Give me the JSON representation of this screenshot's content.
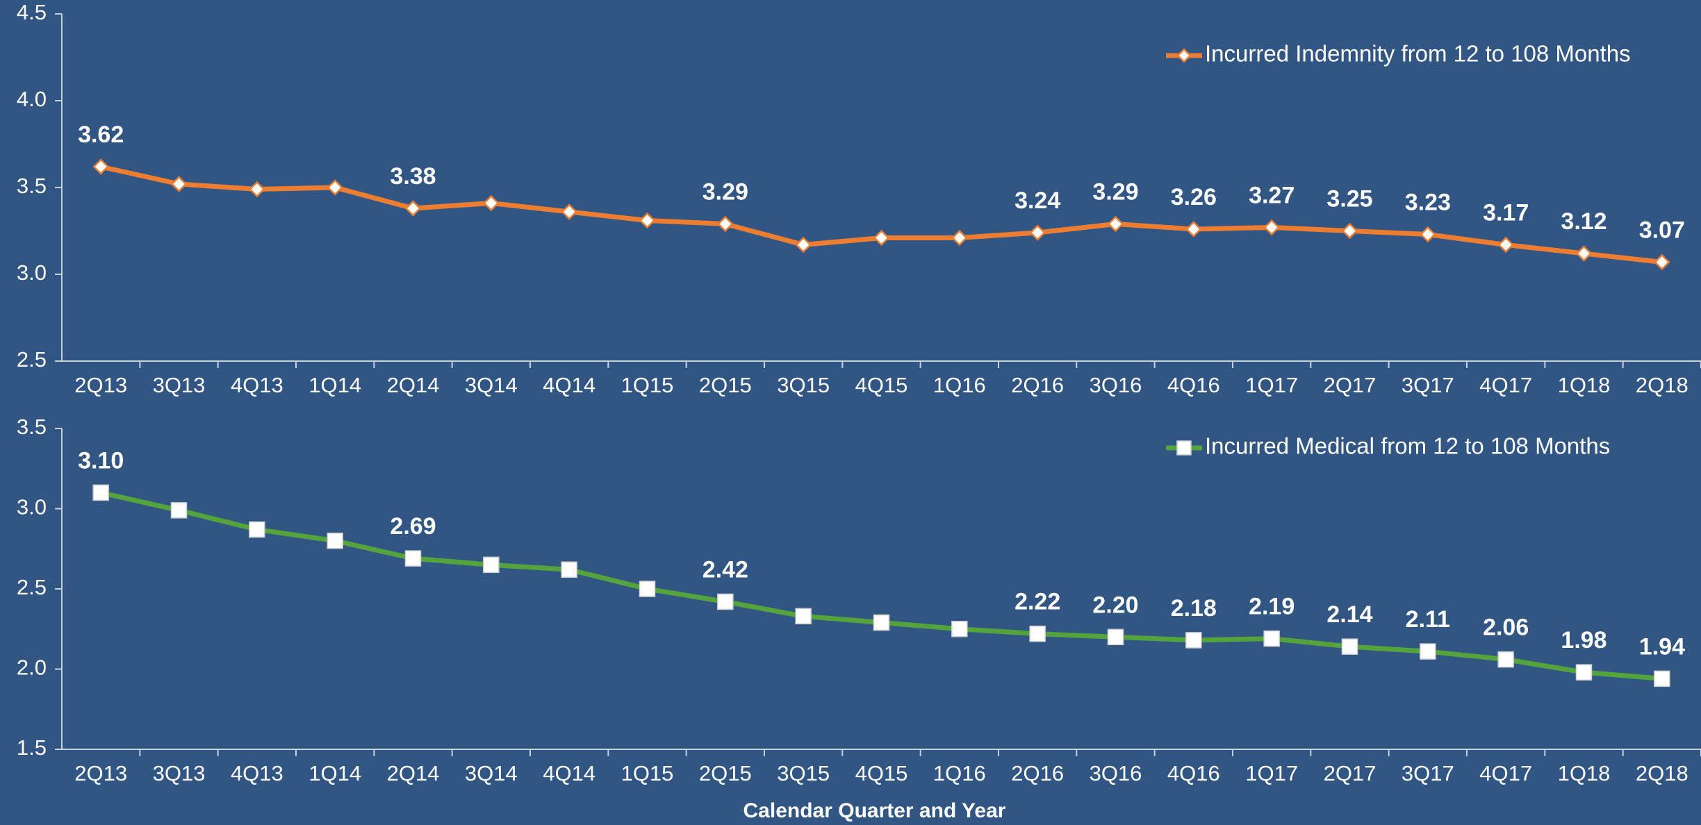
{
  "chart_data": [
    {
      "type": "line",
      "categories": [
        "2Q13",
        "3Q13",
        "4Q13",
        "1Q14",
        "2Q14",
        "3Q14",
        "4Q14",
        "1Q15",
        "2Q15",
        "3Q15",
        "4Q15",
        "1Q16",
        "2Q16",
        "3Q16",
        "4Q16",
        "1Q17",
        "2Q17",
        "3Q17",
        "4Q17",
        "1Q18",
        "2Q18"
      ],
      "series": [
        {
          "name": "Incurred Indemnity from 12 to 108 Months",
          "color": "#ed7d31",
          "marker": "diamond",
          "values": [
            3.62,
            3.52,
            3.49,
            3.5,
            3.38,
            3.41,
            3.36,
            3.31,
            3.29,
            3.17,
            3.21,
            3.21,
            3.24,
            3.29,
            3.26,
            3.27,
            3.25,
            3.23,
            3.17,
            3.12,
            3.07
          ],
          "value_labels": [
            "3.62",
            null,
            null,
            null,
            "3.38",
            null,
            null,
            null,
            "3.29",
            null,
            null,
            null,
            "3.24",
            "3.29",
            "3.26",
            "3.27",
            "3.25",
            "3.23",
            "3.17",
            "3.12",
            "3.07"
          ]
        }
      ],
      "ylim": [
        2.5,
        4.5
      ],
      "yticks": [
        2.5,
        {
          "value": 3,
          "label": "3.0"
        },
        3.5,
        {
          "value": 4,
          "label": "4.0"
        },
        4.5
      ],
      "legend": "upper right"
    },
    {
      "type": "line",
      "categories": [
        "2Q13",
        "3Q13",
        "4Q13",
        "1Q14",
        "2Q14",
        "3Q14",
        "4Q14",
        "1Q15",
        "2Q15",
        "3Q15",
        "4Q15",
        "1Q16",
        "2Q16",
        "3Q16",
        "4Q16",
        "1Q17",
        "2Q17",
        "3Q17",
        "4Q17",
        "1Q18",
        "2Q18"
      ],
      "x_label": "Calendar Quarter and Year",
      "series": [
        {
          "name": "Incurred Medical from 12 to 108 Months",
          "color": "#55a33c",
          "marker": "square",
          "values": [
            3.1,
            2.99,
            2.87,
            2.8,
            2.69,
            2.65,
            2.62,
            2.5,
            2.42,
            2.33,
            2.29,
            2.25,
            2.22,
            2.2,
            2.18,
            2.19,
            2.14,
            2.11,
            2.06,
            1.98,
            1.94
          ],
          "value_labels": [
            "3.10",
            null,
            null,
            null,
            "2.69",
            null,
            null,
            null,
            "2.42",
            null,
            null,
            null,
            "2.22",
            "2.20",
            "2.18",
            "2.19",
            "2.14",
            "2.11",
            "2.06",
            "1.98",
            "1.94"
          ]
        }
      ],
      "ylim": [
        1.5,
        3.5
      ],
      "yticks": [
        1.5,
        {
          "value": 2,
          "label": "2.0"
        },
        2.5,
        {
          "value": 3,
          "label": "3.0"
        },
        3.5
      ],
      "legend": "upper right"
    }
  ]
}
